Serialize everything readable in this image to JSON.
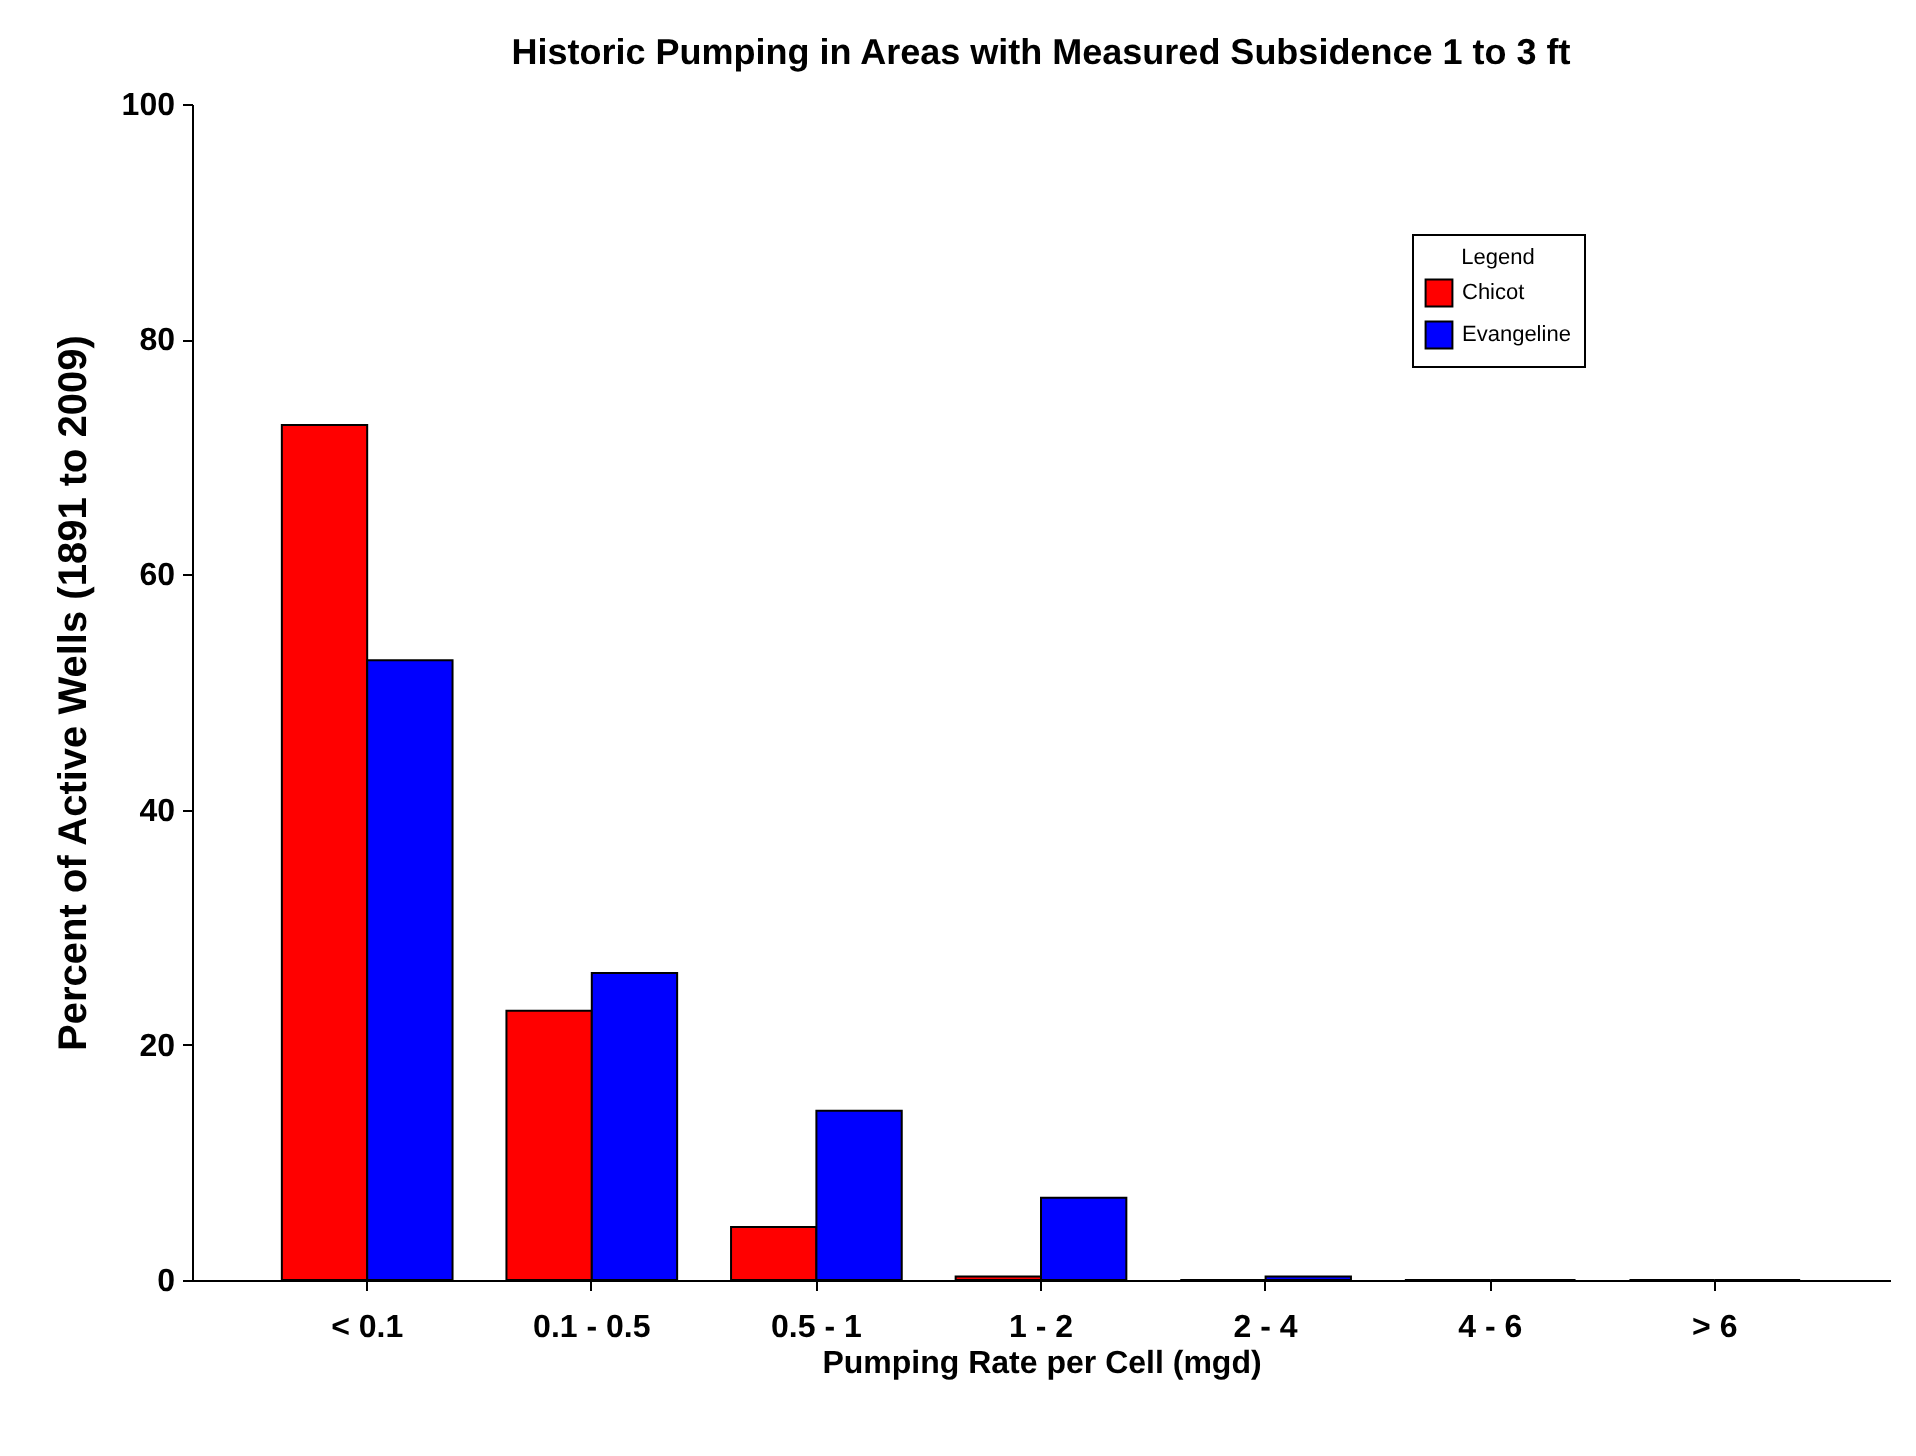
{
  "chart_data": {
    "type": "bar",
    "title": "Historic Pumping in Areas with Measured Subsidence 1 to 3 ft",
    "xlabel": "Pumping Rate per Cell (mgd)",
    "ylabel": "Percent of Active Wells (1891 to 2009)",
    "legend_title": "Legend",
    "categories": [
      "< 0.1",
      "0.1 - 0.5",
      "0.5 - 1",
      "1 - 2",
      "2 - 4",
      "4 - 6",
      "> 6"
    ],
    "series": [
      {
        "name": "Chicot",
        "color": "#ff0000",
        "values": [
          72.7,
          22.9,
          4.5,
          0.3,
          0,
          0,
          0
        ]
      },
      {
        "name": "Evangeline",
        "color": "#0000ff",
        "values": [
          52.7,
          26.1,
          14.4,
          7.0,
          0.3,
          0,
          0
        ]
      }
    ],
    "ylim": [
      0,
      100
    ],
    "yticks": [
      0,
      20,
      40,
      60,
      80,
      100
    ],
    "grid": false,
    "legend": "top right"
  }
}
